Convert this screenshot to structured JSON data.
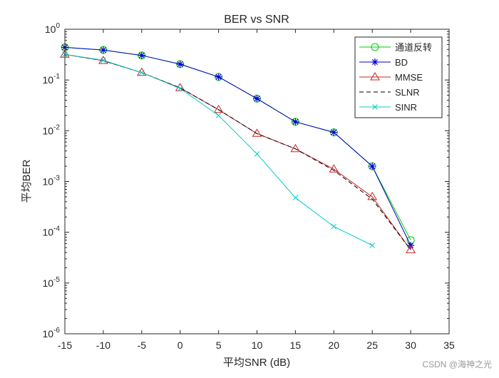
{
  "chart_data": {
    "type": "line",
    "title": "BER vs SNR",
    "xlabel": "平均SNR (dB)",
    "ylabel": "平均BER",
    "xlim": [
      -15,
      35
    ],
    "ylim": [
      1e-06,
      1
    ],
    "yscale": "log",
    "xticks": [
      -15,
      -10,
      -5,
      0,
      5,
      10,
      15,
      20,
      25,
      30,
      35
    ],
    "xtick_labels": [
      "-15",
      "-10",
      "-5",
      "0",
      "5",
      "10",
      "15",
      "20",
      "25",
      "30",
      "35"
    ],
    "yticks": [
      {
        "value": 1,
        "mantissa": "10",
        "exp": "0"
      },
      {
        "value": 0.1,
        "mantissa": "10",
        "exp": "-1"
      },
      {
        "value": 0.01,
        "mantissa": "10",
        "exp": "-2"
      },
      {
        "value": 0.001,
        "mantissa": "10",
        "exp": "-3"
      },
      {
        "value": 0.0001,
        "mantissa": "10",
        "exp": "-4"
      },
      {
        "value": 1e-05,
        "mantissa": "10",
        "exp": "-5"
      },
      {
        "value": 1e-06,
        "mantissa": "10",
        "exp": "-6"
      }
    ],
    "legend_position": "top-right",
    "series": [
      {
        "name": "通道反转",
        "color": "#00cc00",
        "marker": "circle",
        "dash": "solid",
        "x": [
          -15,
          -10,
          -5,
          0,
          5,
          10,
          15,
          20,
          25,
          30
        ],
        "y": [
          0.44,
          0.39,
          0.305,
          0.205,
          0.115,
          0.043,
          0.015,
          0.0093,
          0.002,
          7e-05
        ]
      },
      {
        "name": "BD",
        "color": "#0000cc",
        "marker": "asterisk",
        "dash": "solid",
        "x": [
          -15,
          -10,
          -5,
          0,
          5,
          10,
          15,
          20,
          25,
          30
        ],
        "y": [
          0.44,
          0.39,
          0.305,
          0.205,
          0.115,
          0.043,
          0.015,
          0.0093,
          0.002,
          5.5e-05
        ]
      },
      {
        "name": "MMSE",
        "color": "#cc2222",
        "marker": "triangle",
        "dash": "solid",
        "x": [
          -15,
          -10,
          -5,
          0,
          5,
          10,
          15,
          20,
          25,
          30
        ],
        "y": [
          0.32,
          0.24,
          0.14,
          0.07,
          0.026,
          0.0088,
          0.0044,
          0.00175,
          0.0005,
          4.5e-05
        ]
      },
      {
        "name": "SLNR",
        "color": "#000000",
        "marker": "none",
        "dash": "dashed",
        "x": [
          -15,
          -10,
          -5,
          0,
          5,
          10,
          15,
          20,
          25,
          30
        ],
        "y": [
          0.32,
          0.24,
          0.14,
          0.07,
          0.026,
          0.0088,
          0.0044,
          0.00165,
          0.00045,
          4.5e-05
        ]
      },
      {
        "name": "SINR",
        "color": "#00cccc",
        "marker": "x",
        "dash": "solid",
        "x": [
          -15,
          -10,
          -5,
          0,
          5,
          10,
          15,
          20,
          25
        ],
        "y": [
          0.32,
          0.245,
          0.14,
          0.068,
          0.02,
          0.0035,
          0.00048,
          0.00013,
          5.5e-05
        ]
      }
    ]
  },
  "watermark": "CSDN @海神之光"
}
